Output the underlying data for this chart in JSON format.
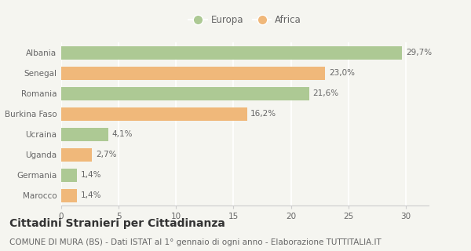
{
  "categories": [
    "Albania",
    "Senegal",
    "Romania",
    "Burkina Faso",
    "Ucraina",
    "Uganda",
    "Germania",
    "Marocco"
  ],
  "values": [
    29.7,
    23.0,
    21.6,
    16.2,
    4.1,
    2.7,
    1.4,
    1.4
  ],
  "labels": [
    "29,7%",
    "23,0%",
    "21,6%",
    "16,2%",
    "4,1%",
    "2,7%",
    "1,4%",
    "1,4%"
  ],
  "continents": [
    "Europa",
    "Africa",
    "Europa",
    "Africa",
    "Europa",
    "Africa",
    "Europa",
    "Africa"
  ],
  "color_europa": "#adc994",
  "color_africa": "#f0b87a",
  "background_color": "#f5f5f0",
  "xlim": [
    0,
    32
  ],
  "xticks": [
    0,
    5,
    10,
    15,
    20,
    25,
    30
  ],
  "legend_europa": "Europa",
  "legend_africa": "Africa",
  "title": "Cittadini Stranieri per Cittadinanza",
  "subtitle": "COMUNE DI MURA (BS) - Dati ISTAT al 1° gennaio di ogni anno - Elaborazione TUTTITALIA.IT",
  "title_fontsize": 10,
  "subtitle_fontsize": 7.5,
  "label_fontsize": 7.5,
  "tick_fontsize": 7.5,
  "legend_fontsize": 8.5,
  "bar_height": 0.65
}
